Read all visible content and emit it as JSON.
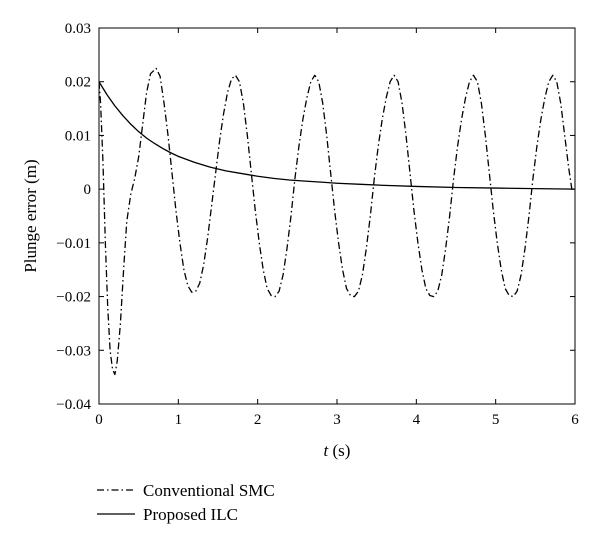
{
  "chart_data": {
    "type": "line",
    "xlabel_var": "t",
    "xlabel_unit": " (s)",
    "ylabel": "Plunge error (m)",
    "xlim": [
      0,
      6
    ],
    "ylim": [
      -0.04,
      0.03
    ],
    "x_ticks": [
      "0",
      "1",
      "2",
      "3",
      "4",
      "5",
      "6"
    ],
    "y_ticks": [
      "0.03",
      "0.02",
      "0.01",
      "0",
      "−0.01",
      "−0.02",
      "−0.03",
      "−0.04"
    ],
    "grid": false,
    "legend_position": "below-left",
    "series": [
      {
        "name": "Conventional SMC",
        "style": "dash-dot",
        "color": "#000000",
        "points": [
          [
            0.0,
            0.02
          ],
          [
            0.02,
            0.016
          ],
          [
            0.05,
            0.005
          ],
          [
            0.08,
            -0.01
          ],
          [
            0.11,
            -0.022
          ],
          [
            0.14,
            -0.03
          ],
          [
            0.17,
            -0.0335
          ],
          [
            0.2,
            -0.0345
          ],
          [
            0.23,
            -0.032
          ],
          [
            0.27,
            -0.025
          ],
          [
            0.31,
            -0.015
          ],
          [
            0.35,
            -0.006
          ],
          [
            0.4,
            -0.001
          ],
          [
            0.45,
            0.002
          ],
          [
            0.5,
            0.006
          ],
          [
            0.55,
            0.012
          ],
          [
            0.6,
            0.018
          ],
          [
            0.65,
            0.0215
          ],
          [
            0.72,
            0.0225
          ],
          [
            0.77,
            0.021
          ],
          [
            0.82,
            0.016
          ],
          [
            0.87,
            0.01
          ],
          [
            0.92,
            0.003
          ],
          [
            0.97,
            -0.004
          ],
          [
            1.02,
            -0.01
          ],
          [
            1.07,
            -0.015
          ],
          [
            1.12,
            -0.018
          ],
          [
            1.17,
            -0.0192
          ],
          [
            1.22,
            -0.019
          ],
          [
            1.27,
            -0.0175
          ],
          [
            1.32,
            -0.014
          ],
          [
            1.37,
            -0.009
          ],
          [
            1.42,
            -0.003
          ],
          [
            1.47,
            0.003
          ],
          [
            1.52,
            0.009
          ],
          [
            1.57,
            0.014
          ],
          [
            1.62,
            0.018
          ],
          [
            1.67,
            0.0205
          ],
          [
            1.72,
            0.0212
          ],
          [
            1.77,
            0.02
          ],
          [
            1.82,
            0.016
          ],
          [
            1.87,
            0.01
          ],
          [
            1.92,
            0.003
          ],
          [
            1.97,
            -0.004
          ],
          [
            2.02,
            -0.01
          ],
          [
            2.07,
            -0.015
          ],
          [
            2.12,
            -0.0185
          ],
          [
            2.17,
            -0.0198
          ],
          [
            2.22,
            -0.02
          ],
          [
            2.27,
            -0.019
          ],
          [
            2.32,
            -0.016
          ],
          [
            2.37,
            -0.011
          ],
          [
            2.42,
            -0.005
          ],
          [
            2.47,
            0.002
          ],
          [
            2.52,
            0.008
          ],
          [
            2.57,
            0.013
          ],
          [
            2.62,
            0.017
          ],
          [
            2.67,
            0.02
          ],
          [
            2.72,
            0.0212
          ],
          [
            2.77,
            0.02
          ],
          [
            2.82,
            0.016
          ],
          [
            2.87,
            0.01
          ],
          [
            2.92,
            0.003
          ],
          [
            2.97,
            -0.004
          ],
          [
            3.02,
            -0.01
          ],
          [
            3.07,
            -0.015
          ],
          [
            3.12,
            -0.0185
          ],
          [
            3.17,
            -0.0198
          ],
          [
            3.22,
            -0.02
          ],
          [
            3.27,
            -0.019
          ],
          [
            3.32,
            -0.016
          ],
          [
            3.37,
            -0.011
          ],
          [
            3.42,
            -0.005
          ],
          [
            3.47,
            0.002
          ],
          [
            3.52,
            0.008
          ],
          [
            3.57,
            0.013
          ],
          [
            3.62,
            0.017
          ],
          [
            3.67,
            0.02
          ],
          [
            3.72,
            0.0212
          ],
          [
            3.77,
            0.02
          ],
          [
            3.82,
            0.016
          ],
          [
            3.87,
            0.01
          ],
          [
            3.92,
            0.003
          ],
          [
            3.97,
            -0.004
          ],
          [
            4.02,
            -0.01
          ],
          [
            4.07,
            -0.015
          ],
          [
            4.12,
            -0.0185
          ],
          [
            4.17,
            -0.0198
          ],
          [
            4.22,
            -0.02
          ],
          [
            4.27,
            -0.019
          ],
          [
            4.32,
            -0.016
          ],
          [
            4.37,
            -0.011
          ],
          [
            4.42,
            -0.005
          ],
          [
            4.47,
            0.002
          ],
          [
            4.52,
            0.008
          ],
          [
            4.57,
            0.013
          ],
          [
            4.62,
            0.017
          ],
          [
            4.67,
            0.02
          ],
          [
            4.72,
            0.0212
          ],
          [
            4.77,
            0.02
          ],
          [
            4.82,
            0.016
          ],
          [
            4.87,
            0.01
          ],
          [
            4.92,
            0.003
          ],
          [
            4.97,
            -0.004
          ],
          [
            5.02,
            -0.01
          ],
          [
            5.07,
            -0.015
          ],
          [
            5.12,
            -0.0185
          ],
          [
            5.17,
            -0.0198
          ],
          [
            5.22,
            -0.02
          ],
          [
            5.27,
            -0.019
          ],
          [
            5.32,
            -0.016
          ],
          [
            5.37,
            -0.011
          ],
          [
            5.42,
            -0.005
          ],
          [
            5.47,
            0.002
          ],
          [
            5.52,
            0.008
          ],
          [
            5.57,
            0.013
          ],
          [
            5.62,
            0.017
          ],
          [
            5.67,
            0.02
          ],
          [
            5.72,
            0.0212
          ],
          [
            5.77,
            0.02
          ],
          [
            5.82,
            0.016
          ],
          [
            5.87,
            0.01
          ],
          [
            5.92,
            0.004
          ],
          [
            5.96,
            0.0
          ],
          [
            6.0,
            0.0
          ]
        ]
      },
      {
        "name": "Proposed ILC",
        "style": "solid",
        "color": "#000000",
        "points": [
          [
            0.0,
            0.02
          ],
          [
            0.1,
            0.0176
          ],
          [
            0.2,
            0.0155
          ],
          [
            0.3,
            0.0137
          ],
          [
            0.4,
            0.0121
          ],
          [
            0.5,
            0.0107
          ],
          [
            0.6,
            0.0095
          ],
          [
            0.7,
            0.0085
          ],
          [
            0.8,
            0.0076
          ],
          [
            0.9,
            0.0068
          ],
          [
            1.0,
            0.0061
          ],
          [
            1.2,
            0.005
          ],
          [
            1.4,
            0.0041
          ],
          [
            1.6,
            0.0034
          ],
          [
            1.8,
            0.0029
          ],
          [
            2.0,
            0.0024
          ],
          [
            2.2,
            0.002
          ],
          [
            2.4,
            0.0017
          ],
          [
            2.6,
            0.0015
          ],
          [
            2.8,
            0.0013
          ],
          [
            3.0,
            0.0011
          ],
          [
            3.3,
            0.0009
          ],
          [
            3.6,
            0.0007
          ],
          [
            4.0,
            0.0005
          ],
          [
            4.5,
            0.0003
          ],
          [
            5.0,
            0.0002
          ],
          [
            5.5,
            0.0001
          ],
          [
            6.0,
            0.0
          ]
        ]
      }
    ]
  }
}
